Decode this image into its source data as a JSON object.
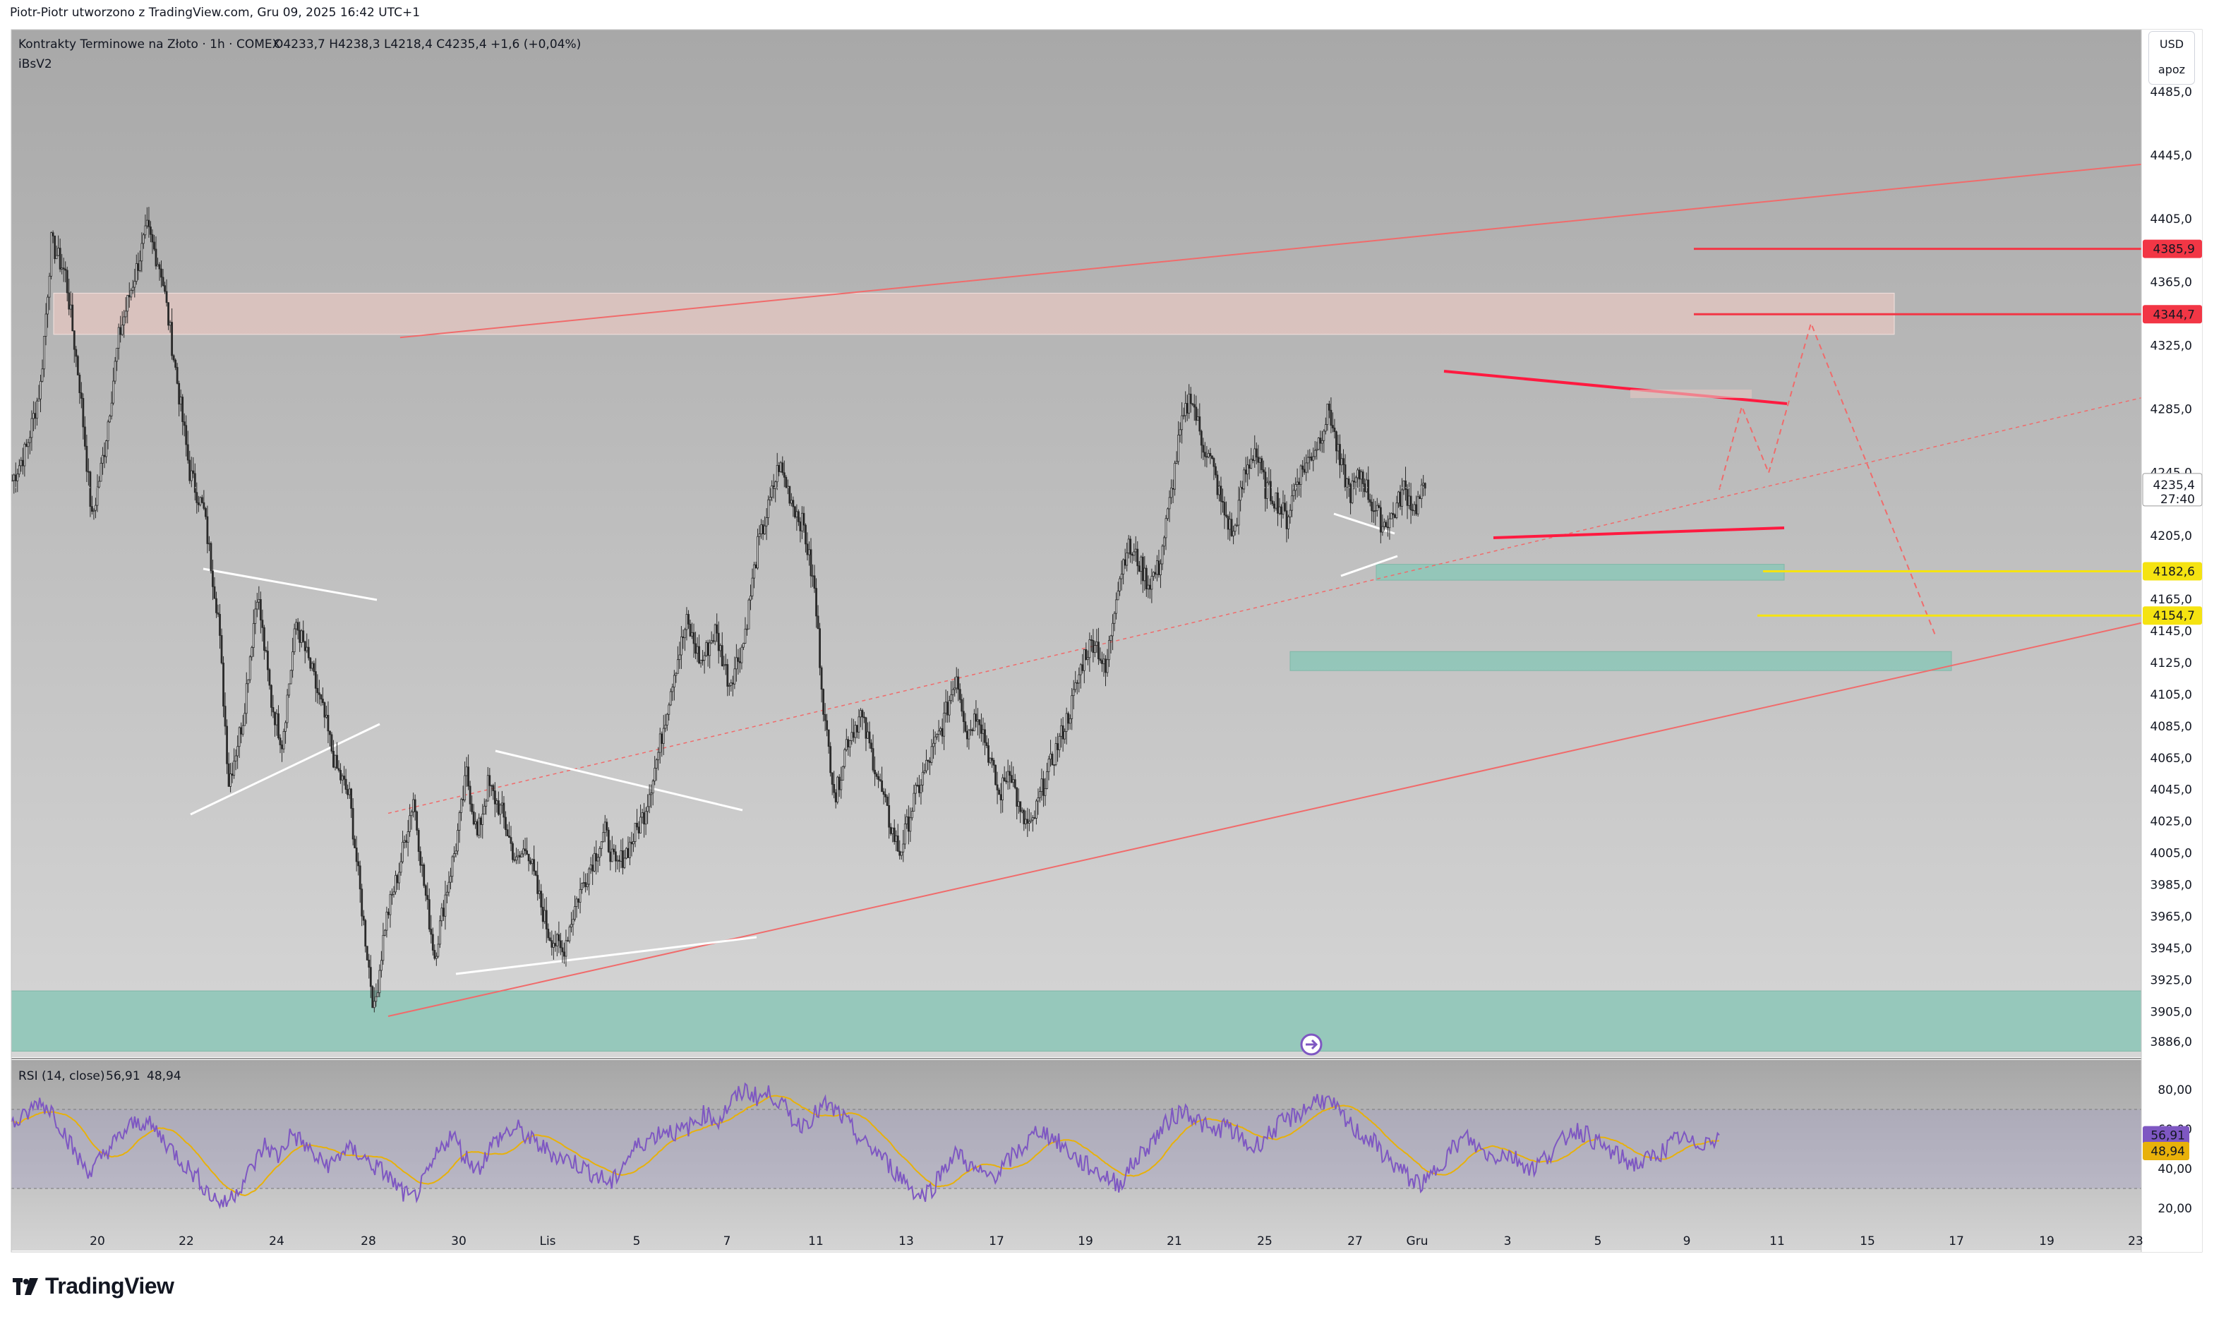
{
  "header": {
    "caption": "Piotr-Piotr utworzono z TradingView.com, Gru 09, 2025 16:42 UTC+1",
    "symbol": "Kontrakty Terminowe na Złoto · 1h · COMEX",
    "ohlc": "O4233,7  H4238,3  L4218,4  C4235,4  +1,6 (+0,04%)",
    "indicator": "iBsV2"
  },
  "currency_box": {
    "currency": "USD",
    "mode": "apoz"
  },
  "brand": {
    "name": "TradingView"
  },
  "colors": {
    "candle": "#2a2a2a",
    "channel": "#f06b6b",
    "triangle": "#ffffff",
    "resistance_line": "#ff1a40",
    "support_line": "#f5e311",
    "demand_zone": "#8fc7b8",
    "supply_zone": "#e6c7c2",
    "rsi_line": "#7e57c2",
    "rsi_ma": "#e8b10a",
    "price_badge_red": "#f23645",
    "price_badge_yellow": "#f5e311",
    "price_badge_current": "#ffffff",
    "rsi_badge": "#7e57c2"
  },
  "chart_data": [
    {
      "type": "candlestick",
      "title": "Kontrakty Terminowe na Złoto · 1h · COMEX",
      "x_ticks": [
        "20",
        "22",
        "24",
        "28",
        "30",
        "Lis",
        "5",
        "7",
        "11",
        "13",
        "17",
        "19",
        "21",
        "25",
        "27",
        "Gru",
        "3",
        "5",
        "9",
        "11",
        "15",
        "17",
        "19",
        "23"
      ],
      "y_ticks": [
        "4485,0",
        "4445,0",
        "4405,0",
        "4365,0",
        "4325,0",
        "4285,0",
        "4245,0",
        "4205,0",
        "4165,0",
        "4145,0",
        "4125,0",
        "4105,0",
        "4085,0",
        "4065,0",
        "4045,0",
        "4025,0",
        "4005,0",
        "3985,0",
        "3965,0",
        "3945,0",
        "3925,0",
        "3905,0",
        "3886,0"
      ],
      "ylim": [
        3880,
        4500
      ],
      "price_path": [
        [
          0,
          4240
        ],
        [
          8,
          4260
        ],
        [
          16,
          4300
        ],
        [
          22,
          4390
        ],
        [
          30,
          4370
        ],
        [
          38,
          4300
        ],
        [
          45,
          4215
        ],
        [
          52,
          4260
        ],
        [
          60,
          4330
        ],
        [
          68,
          4365
        ],
        [
          76,
          4398
        ],
        [
          84,
          4372
        ],
        [
          92,
          4310
        ],
        [
          100,
          4245
        ],
        [
          108,
          4220
        ],
        [
          116,
          4155
        ],
        [
          122,
          4050
        ],
        [
          130,
          4090
        ],
        [
          138,
          4170
        ],
        [
          146,
          4100
        ],
        [
          152,
          4075
        ],
        [
          160,
          4150
        ],
        [
          168,
          4122
        ],
        [
          176,
          4090
        ],
        [
          182,
          4060
        ],
        [
          190,
          4040
        ],
        [
          198,
          3960
        ],
        [
          204,
          3905
        ],
        [
          210,
          3960
        ],
        [
          218,
          3995
        ],
        [
          226,
          4040
        ],
        [
          232,
          3985
        ],
        [
          238,
          3940
        ],
        [
          244,
          3978
        ],
        [
          250,
          4010
        ],
        [
          256,
          4055
        ],
        [
          262,
          4015
        ],
        [
          268,
          4048
        ],
        [
          276,
          4030
        ],
        [
          284,
          3998
        ],
        [
          290,
          4010
        ],
        [
          296,
          3980
        ],
        [
          302,
          3955
        ],
        [
          310,
          3942
        ],
        [
          318,
          3975
        ],
        [
          326,
          3998
        ],
        [
          334,
          4018
        ],
        [
          340,
          3995
        ],
        [
          348,
          4010
        ],
        [
          356,
          4030
        ],
        [
          364,
          4068
        ],
        [
          372,
          4115
        ],
        [
          380,
          4150
        ],
        [
          388,
          4125
        ],
        [
          396,
          4145
        ],
        [
          404,
          4112
        ],
        [
          412,
          4138
        ],
        [
          420,
          4198
        ],
        [
          426,
          4222
        ],
        [
          432,
          4250
        ],
        [
          440,
          4225
        ],
        [
          446,
          4210
        ],
        [
          452,
          4170
        ],
        [
          458,
          4085
        ],
        [
          464,
          4040
        ],
        [
          470,
          4075
        ],
        [
          478,
          4092
        ],
        [
          486,
          4060
        ],
        [
          494,
          4025
        ],
        [
          500,
          4005
        ],
        [
          508,
          4038
        ],
        [
          516,
          4062
        ],
        [
          524,
          4085
        ],
        [
          532,
          4118
        ],
        [
          538,
          4080
        ],
        [
          544,
          4095
        ],
        [
          550,
          4068
        ],
        [
          556,
          4040
        ],
        [
          562,
          4060
        ],
        [
          568,
          4028
        ],
        [
          574,
          4020
        ],
        [
          580,
          4045
        ],
        [
          588,
          4070
        ],
        [
          596,
          4095
        ],
        [
          604,
          4130
        ],
        [
          610,
          4140
        ],
        [
          616,
          4118
        ],
        [
          622,
          4170
        ],
        [
          628,
          4198
        ],
        [
          634,
          4190
        ],
        [
          640,
          4175
        ],
        [
          646,
          4185
        ],
        [
          652,
          4225
        ],
        [
          658,
          4270
        ],
        [
          664,
          4295
        ],
        [
          670,
          4265
        ],
        [
          676,
          4250
        ],
        [
          682,
          4222
        ],
        [
          688,
          4205
        ],
        [
          694,
          4242
        ],
        [
          700,
          4260
        ],
        [
          706,
          4235
        ],
        [
          712,
          4228
        ],
        [
          718,
          4215
        ],
        [
          724,
          4242
        ],
        [
          730,
          4252
        ],
        [
          736,
          4265
        ],
        [
          742,
          4285
        ],
        [
          748,
          4250
        ],
        [
          754,
          4232
        ],
        [
          760,
          4245
        ],
        [
          766,
          4225
        ],
        [
          772,
          4212
        ],
        [
          778,
          4218
        ],
        [
          784,
          4235
        ],
        [
          790,
          4222
        ],
        [
          796,
          4235
        ]
      ],
      "channel": {
        "upper": {
          "from": {
            "x": 5,
            "price": 4330
          },
          "to": {
            "x": 88,
            "price": 4440
          }
        },
        "lower": {
          "from": {
            "x": 5,
            "price": 3905
          },
          "to": {
            "x": 88,
            "price": 4150
          }
        },
        "mid": {
          "from": {
            "x": 5,
            "price": 4030
          },
          "to": {
            "x": 88,
            "price": 4292
          }
        }
      },
      "zones": [
        {
          "kind": "supply",
          "from_price": 4332,
          "to_price": 4358
        },
        {
          "kind": "demand",
          "from_price": 3880,
          "to_price": 3918
        },
        {
          "kind": "demand",
          "from_price": 4177,
          "to_price": 4187
        },
        {
          "kind": "demand",
          "from_price": 4120,
          "to_price": 4132
        }
      ],
      "levels": [
        {
          "price": 4385.9,
          "label": "4385,9",
          "color": "#f23645"
        },
        {
          "price": 4344.7,
          "label": "4344,7",
          "color": "#f23645"
        },
        {
          "price": 4182.6,
          "label": "4182,6",
          "color": "#f5e311"
        },
        {
          "price": 4154.7,
          "label": "4154,7",
          "color": "#f5e311"
        }
      ],
      "current_price": {
        "label": "4235,4",
        "countdown": "27:40"
      }
    },
    {
      "type": "line",
      "title": "RSI (14, close)",
      "series": [
        {
          "name": "56,91",
          "color": "#7e57c2"
        },
        {
          "name": "48,94",
          "color": "#e8b10a"
        }
      ],
      "y_ticks": [
        "80,00",
        "40,00",
        "20,00"
      ],
      "hidden_tick": "60,00",
      "ylim": [
        15,
        90
      ],
      "bands": [
        70,
        30
      ],
      "rsi_values": [
        62,
        66,
        74,
        70,
        58,
        45,
        38,
        48,
        55,
        62,
        64,
        58,
        50,
        42,
        35,
        26,
        22,
        30,
        40,
        52,
        46,
        58,
        52,
        44,
        42,
        50,
        48,
        42,
        38,
        30,
        24,
        34,
        48,
        58,
        46,
        40,
        52,
        58,
        60,
        54,
        50,
        46,
        44,
        40,
        36,
        32,
        44,
        52,
        56,
        60,
        58,
        62,
        68,
        64,
        74,
        80,
        76,
        78,
        70,
        62,
        66,
        72,
        68,
        60,
        52,
        48,
        40,
        34,
        26,
        30,
        42,
        48,
        40,
        36,
        38,
        46,
        52,
        60,
        56,
        50,
        44,
        40,
        36,
        32,
        42,
        50,
        58,
        66,
        70,
        64,
        58,
        62,
        56,
        50,
        56,
        62,
        66,
        70,
        76,
        72,
        64,
        58,
        54,
        46,
        40,
        34,
        32,
        42,
        50,
        56,
        50,
        46,
        48,
        44,
        40,
        46,
        52,
        60,
        58,
        52,
        48,
        44,
        42,
        46,
        50,
        56,
        52,
        54,
        57
      ],
      "ma_window": 14
    }
  ]
}
